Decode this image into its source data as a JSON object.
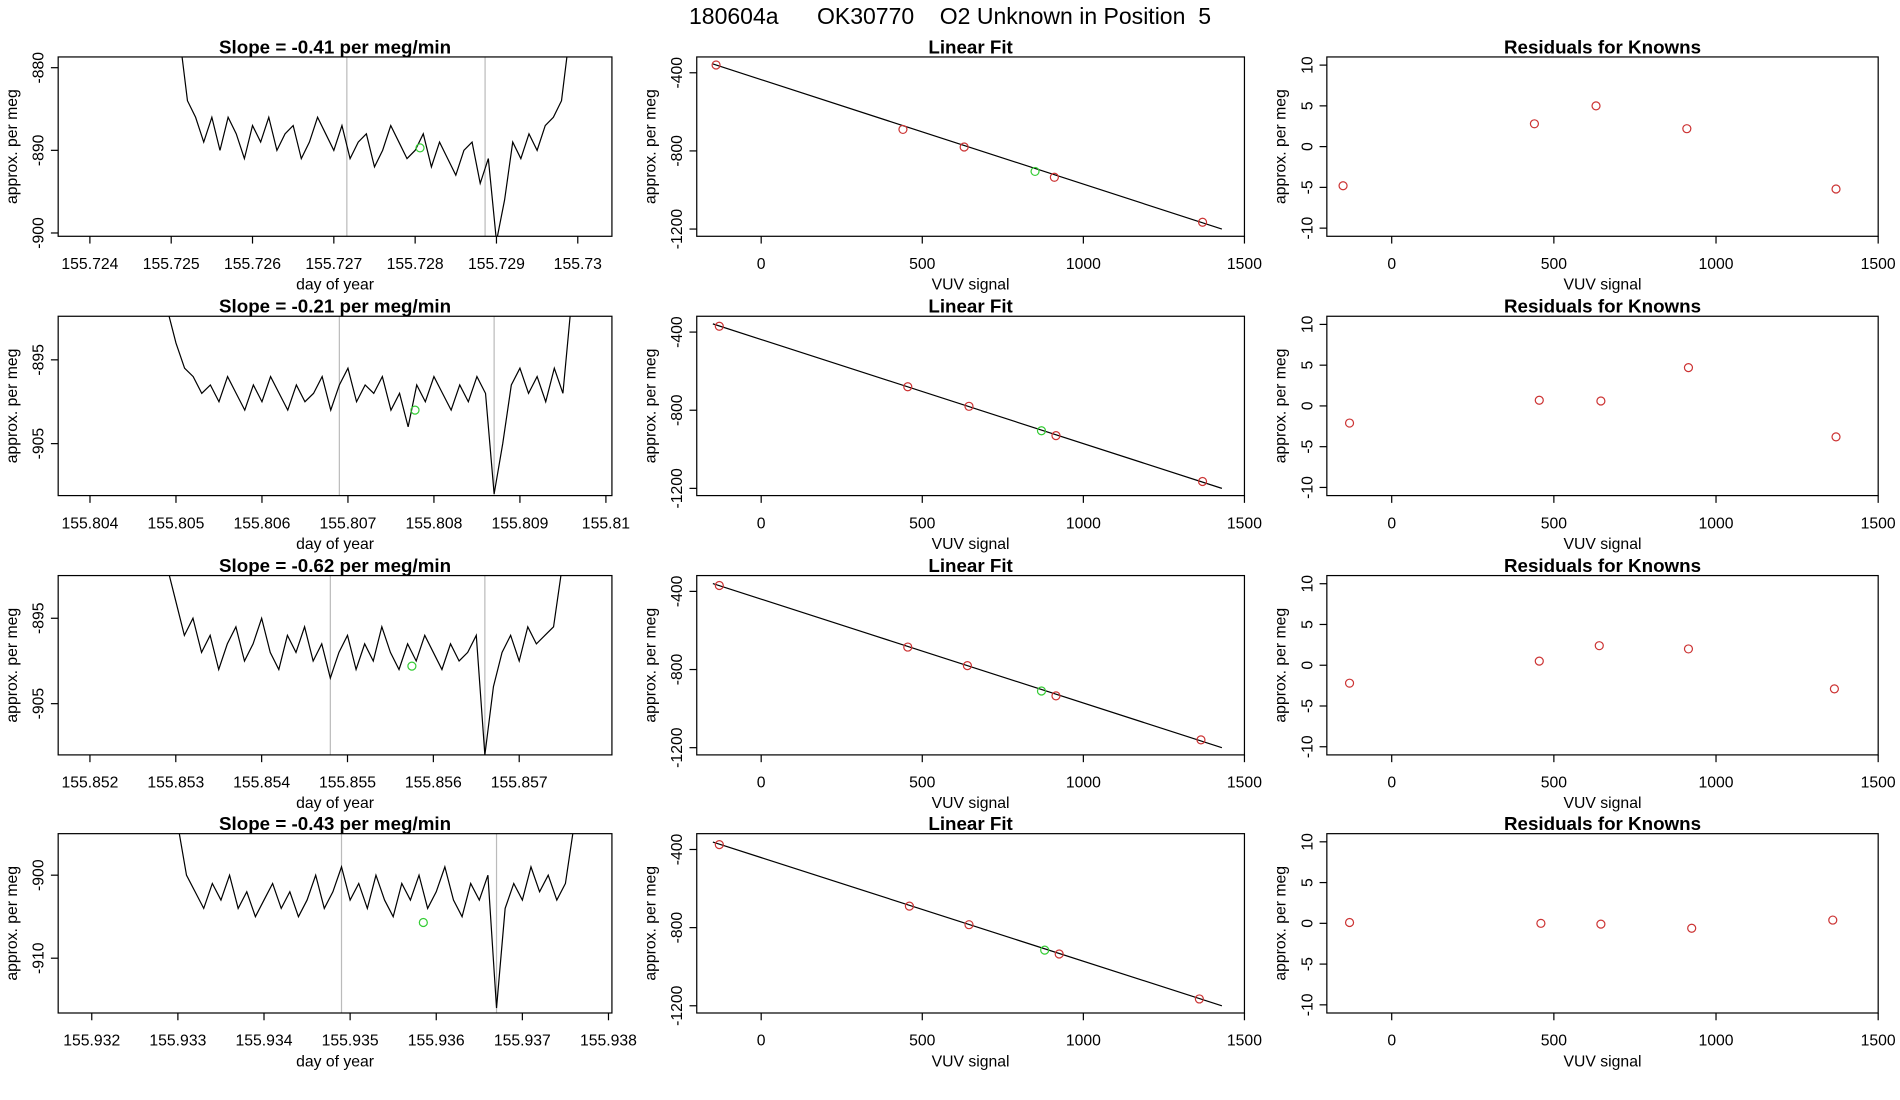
{
  "title": "180604a      OK30770    O2 Unknown in Position  5",
  "chart_data": [
    {
      "type": "line",
      "title": "Slope =  -0.41  per meg/min",
      "xlabel": "day of year",
      "ylabel": "approx. per meg",
      "color": "#000000",
      "x": [
        155.7251,
        155.7252,
        155.7253,
        155.7254,
        155.7255,
        155.7256,
        155.7257,
        155.7258,
        155.7259,
        155.726,
        155.7261,
        155.7262,
        155.7263,
        155.7264,
        155.7265,
        155.7266,
        155.7267,
        155.7268,
        155.7269,
        155.727,
        155.7271,
        155.7272,
        155.7273,
        155.7274,
        155.7275,
        155.7276,
        155.7277,
        155.7278,
        155.7279,
        155.728,
        155.7281,
        155.7282,
        155.7283,
        155.7284,
        155.7285,
        155.7286,
        155.7287,
        155.7288,
        155.7289,
        155.729,
        155.7291,
        155.7292,
        155.7293,
        155.7294,
        155.7295,
        155.7296,
        155.7297,
        155.7298,
        155.7299
      ],
      "values": [
        -876,
        -884,
        -886,
        -889,
        -886,
        -890,
        -886,
        -888,
        -891,
        -887,
        -889,
        -886,
        -890,
        -888,
        -887,
        -891,
        -889,
        -886,
        -888,
        -890,
        -887,
        -891,
        -889,
        -888,
        -892,
        -890,
        -887,
        -889,
        -891,
        -890,
        -888,
        -892,
        -889,
        -891,
        -893,
        -890,
        -889,
        -894,
        -891,
        -901,
        -896,
        -889,
        -891,
        -888,
        -890,
        -887,
        -886,
        -884,
        -876
      ],
      "highlight": {
        "x": 155.72806,
        "y": -889.7,
        "color": "#33cc33"
      },
      "vlines": [
        155.72716,
        155.72886
      ],
      "vline_color": "#bbbbbb",
      "xlim": [
        155.72361,
        155.73042
      ],
      "ylim": [
        -878.7,
        -900.4
      ],
      "xticks": [
        155.724,
        155.725,
        155.726,
        155.727,
        155.728,
        155.729,
        155.73
      ],
      "yticks": [
        -880,
        -890,
        -900
      ]
    },
    {
      "type": "scatter",
      "title": "Linear Fit",
      "xlabel": "VUV signal",
      "ylabel": "approx. per meg",
      "color": "#cc3333",
      "x": [
        -140,
        440,
        630,
        910,
        1370
      ],
      "values": [
        -360,
        -690,
        -780,
        -935,
        -1165
      ],
      "highlight": {
        "x": 850,
        "y": -905,
        "color": "#33cc33"
      },
      "fit_line": {
        "x": [
          -150,
          1430
        ],
        "y": [
          -355,
          -1200
        ]
      },
      "xlim": [
        -200,
        1500
      ],
      "ylim": [
        -319,
        -1237
      ],
      "xticks": [
        0,
        500,
        1000,
        1500
      ],
      "yticks": [
        -400,
        -800,
        -1200
      ]
    },
    {
      "type": "scatter",
      "title": "Residuals for Knowns",
      "xlabel": "VUV signal",
      "ylabel": "approx. per meg",
      "color": "#cc3333",
      "x": [
        -150,
        440,
        630,
        910,
        1370
      ],
      "values": [
        -4.8,
        2.8,
        5,
        2.2,
        -5.2
      ],
      "xlim": [
        -200,
        1500
      ],
      "ylim": [
        11,
        -11
      ],
      "xticks": [
        0,
        500,
        1000,
        1500
      ],
      "yticks": [
        -10,
        -5,
        0,
        5,
        10
      ]
    },
    {
      "type": "line",
      "title": "Slope =  -0.21  per meg/min",
      "xlabel": "day of year",
      "ylabel": "approx. per meg",
      "color": "#000000",
      "x": [
        155.8049,
        155.805,
        155.8051,
        155.8052,
        155.8053,
        155.8054,
        155.8055,
        155.8056,
        155.8057,
        155.8058,
        155.8059,
        155.806,
        155.8061,
        155.8062,
        155.8063,
        155.8064,
        155.8065,
        155.8066,
        155.8067,
        155.8068,
        155.8069,
        155.807,
        155.8071,
        155.8072,
        155.8073,
        155.8074,
        155.8075,
        155.8076,
        155.8077,
        155.8078,
        155.8079,
        155.808,
        155.8081,
        155.8082,
        155.8083,
        155.8084,
        155.8085,
        155.8086,
        155.8087,
        155.8088,
        155.8089,
        155.809,
        155.8091,
        155.8092,
        155.8093,
        155.8094,
        155.8095,
        155.8096
      ],
      "values": [
        -889,
        -893,
        -896,
        -897,
        -899,
        -898,
        -900,
        -897,
        -899,
        -901,
        -898,
        -900,
        -897,
        -899,
        -901,
        -898,
        -900,
        -899,
        -897,
        -901,
        -898,
        -896,
        -900,
        -898,
        -899,
        -897,
        -901,
        -899,
        -903,
        -898,
        -900,
        -897,
        -899,
        -901,
        -898,
        -900,
        -897,
        -899,
        -911,
        -905,
        -898,
        -896,
        -899,
        -897,
        -900,
        -896,
        -899,
        -888
      ],
      "highlight": {
        "x": 155.80778,
        "y": -901,
        "color": "#33cc33"
      },
      "vlines": [
        155.8069,
        155.8087
      ],
      "vline_color": "#bbbbbb",
      "xlim": [
        155.80363,
        155.81007
      ],
      "ylim": [
        -889.8,
        -911.2
      ],
      "xticks": [
        155.804,
        155.805,
        155.806,
        155.807,
        155.808,
        155.809,
        155.81
      ],
      "yticks": [
        -895,
        -905
      ]
    },
    {
      "type": "scatter",
      "title": "Linear Fit",
      "xlabel": "VUV signal",
      "ylabel": "approx. per meg",
      "color": "#cc3333",
      "x": [
        -130,
        455,
        645,
        915,
        1370
      ],
      "values": [
        -370,
        -680,
        -780,
        -930,
        -1165
      ],
      "highlight": {
        "x": 870,
        "y": -905,
        "color": "#33cc33"
      },
      "fit_line": {
        "x": [
          -150,
          1430
        ],
        "y": [
          -358,
          -1200
        ]
      },
      "xlim": [
        -200,
        1500
      ],
      "ylim": [
        -319,
        -1237
      ],
      "xticks": [
        0,
        500,
        1000,
        1500
      ],
      "yticks": [
        -400,
        -800,
        -1200
      ]
    },
    {
      "type": "scatter",
      "title": "Residuals for Knowns",
      "xlabel": "VUV signal",
      "ylabel": "approx. per meg",
      "color": "#cc3333",
      "x": [
        -130,
        455,
        645,
        915,
        1370
      ],
      "values": [
        -2.1,
        0.7,
        0.6,
        4.7,
        -3.8
      ],
      "xlim": [
        -200,
        1500
      ],
      "ylim": [
        11,
        -11
      ],
      "xticks": [
        0,
        500,
        1000,
        1500
      ],
      "yticks": [
        -10,
        -5,
        0,
        5,
        10
      ]
    },
    {
      "type": "line",
      "title": "Slope =  -0.62  per meg/min",
      "xlabel": "day of year",
      "ylabel": "approx. per meg",
      "color": "#000000",
      "x": [
        155.8529,
        155.853,
        155.8531,
        155.8532,
        155.8533,
        155.8534,
        155.8535,
        155.8536,
        155.8537,
        155.8538,
        155.8539,
        155.854,
        155.8541,
        155.8542,
        155.8543,
        155.8544,
        155.8545,
        155.8546,
        155.8547,
        155.8548,
        155.8549,
        155.855,
        155.8551,
        155.8552,
        155.8553,
        155.8554,
        155.8555,
        155.8556,
        155.8557,
        155.8558,
        155.8559,
        155.856,
        155.8561,
        155.8562,
        155.8563,
        155.8564,
        155.8565,
        155.8566,
        155.8567,
        155.8568,
        155.8569,
        155.857,
        155.8571,
        155.8572,
        155.8573,
        155.8574,
        155.8575
      ],
      "values": [
        -889,
        -893,
        -897,
        -895,
        -899,
        -897,
        -901,
        -898,
        -896,
        -900,
        -898,
        -895,
        -899,
        -901,
        -897,
        -899,
        -896,
        -900,
        -898,
        -902,
        -899,
        -897,
        -901,
        -898,
        -900,
        -896,
        -899,
        -901,
        -898,
        -900,
        -897,
        -899,
        -901,
        -898,
        -900,
        -899,
        -897,
        -911,
        -903,
        -899,
        -897,
        -900,
        -896,
        -898,
        -897,
        -896,
        -889
      ],
      "highlight": {
        "x": 155.85575,
        "y": -900.6,
        "color": "#33cc33"
      },
      "vlines": [
        155.8548,
        155.8566
      ],
      "vline_color": "#bbbbbb",
      "xlim": [
        155.85163,
        155.85808
      ],
      "ylim": [
        -890,
        -911
      ],
      "xticks": [
        155.852,
        155.853,
        155.854,
        155.855,
        155.856,
        155.857
      ],
      "yticks": [
        -895,
        -905
      ]
    },
    {
      "type": "scatter",
      "title": "Linear Fit",
      "xlabel": "VUV signal",
      "ylabel": "approx. per meg",
      "color": "#cc3333",
      "x": [
        -130,
        455,
        640,
        915,
        1365
      ],
      "values": [
        -370,
        -685,
        -780,
        -935,
        -1160
      ],
      "highlight": {
        "x": 870,
        "y": -910,
        "color": "#33cc33"
      },
      "fit_line": {
        "x": [
          -150,
          1430
        ],
        "y": [
          -360,
          -1200
        ]
      },
      "xlim": [
        -200,
        1500
      ],
      "ylim": [
        -319,
        -1237
      ],
      "xticks": [
        0,
        500,
        1000,
        1500
      ],
      "yticks": [
        -400,
        -800,
        -1200
      ]
    },
    {
      "type": "scatter",
      "title": "Residuals for Knowns",
      "xlabel": "VUV signal",
      "ylabel": "approx. per meg",
      "color": "#cc3333",
      "x": [
        -130,
        455,
        640,
        915,
        1365
      ],
      "values": [
        -2.2,
        0.5,
        2.4,
        2,
        -2.9
      ],
      "xlim": [
        -200,
        1500
      ],
      "ylim": [
        11,
        -11
      ],
      "xticks": [
        0,
        500,
        1000,
        1500
      ],
      "yticks": [
        -10,
        -5,
        0,
        5,
        10
      ]
    },
    {
      "type": "line",
      "title": "Slope =  -0.43  per meg/min",
      "xlabel": "day of year",
      "ylabel": "approx. per meg",
      "color": "#000000",
      "x": [
        155.933,
        155.9331,
        155.9332,
        155.9333,
        155.9334,
        155.9335,
        155.9336,
        155.9337,
        155.9338,
        155.9339,
        155.934,
        155.9341,
        155.9342,
        155.9343,
        155.9344,
        155.9345,
        155.9346,
        155.9347,
        155.9348,
        155.9349,
        155.935,
        155.9351,
        155.9352,
        155.9353,
        155.9354,
        155.9355,
        155.9356,
        155.9357,
        155.9358,
        155.9359,
        155.936,
        155.9361,
        155.9362,
        155.9363,
        155.9364,
        155.9365,
        155.9366,
        155.9367,
        155.9368,
        155.9369,
        155.937,
        155.9371,
        155.9372,
        155.9373,
        155.9374,
        155.9375,
        155.9376
      ],
      "values": [
        -894,
        -900,
        -902,
        -904,
        -901,
        -903,
        -900,
        -904,
        -902,
        -905,
        -903,
        -901,
        -904,
        -902,
        -905,
        -903,
        -900,
        -904,
        -902,
        -899,
        -903,
        -901,
        -904,
        -900,
        -903,
        -905,
        -901,
        -903,
        -900,
        -904,
        -902,
        -899,
        -903,
        -905,
        -901,
        -903,
        -900,
        -916,
        -904,
        -901,
        -903,
        -899,
        -902,
        -900,
        -903,
        -901,
        -894
      ],
      "highlight": {
        "x": 155.93585,
        "y": -905.7,
        "color": "#33cc33"
      },
      "vlines": [
        155.9349,
        155.9367
      ],
      "vline_color": "#bbbbbb",
      "xlim": [
        155.93161,
        155.93804
      ],
      "ylim": [
        -895,
        -916.6
      ],
      "xticks": [
        155.932,
        155.933,
        155.934,
        155.935,
        155.936,
        155.937,
        155.938
      ],
      "yticks": [
        -900,
        -910
      ]
    },
    {
      "type": "scatter",
      "title": "Linear Fit",
      "xlabel": "VUV signal",
      "ylabel": "approx. per meg",
      "color": "#cc3333",
      "x": [
        -130,
        460,
        645,
        925,
        1360
      ],
      "values": [
        -375,
        -690,
        -785,
        -935,
        -1165
      ],
      "highlight": {
        "x": 880,
        "y": -915,
        "color": "#33cc33"
      },
      "fit_line": {
        "x": [
          -150,
          1430
        ],
        "y": [
          -362,
          -1200
        ]
      },
      "xlim": [
        -200,
        1500
      ],
      "ylim": [
        -319,
        -1237
      ],
      "xticks": [
        0,
        500,
        1000,
        1500
      ],
      "yticks": [
        -400,
        -800,
        -1200
      ]
    },
    {
      "type": "scatter",
      "title": "Residuals for Knowns",
      "xlabel": "VUV signal",
      "ylabel": "approx. per meg",
      "color": "#cc3333",
      "x": [
        -130,
        460,
        645,
        925,
        1360
      ],
      "values": [
        0.1,
        0,
        -0.1,
        -0.6,
        0.4
      ],
      "xlim": [
        -200,
        1500
      ],
      "ylim": [
        11,
        -11
      ],
      "xticks": [
        0,
        500,
        1000,
        1500
      ],
      "yticks": [
        -10,
        -5,
        0,
        5,
        10
      ]
    }
  ]
}
